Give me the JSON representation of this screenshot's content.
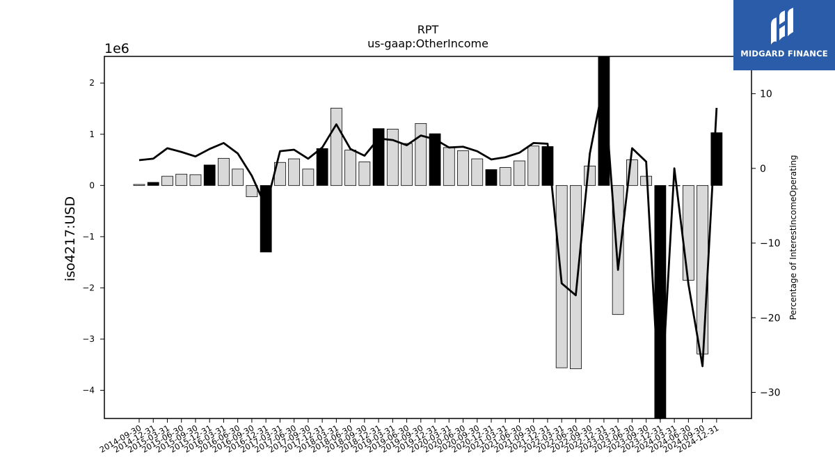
{
  "colors": {
    "bar_normal": "#d9d9d9",
    "bar_q4": "#000000",
    "line": "#000000",
    "logo_bg": "#2a5caa"
  },
  "logo": {
    "text": "MIDGARD FINANCE"
  },
  "chart_data": {
    "type": "bar",
    "title": "RPT",
    "subtitle": "us-gaap:OtherIncome",
    "ylabel": "iso4217:USD",
    "y_offset_text": "1e6",
    "y2label": "Percentage of InterestIncomeOperating",
    "ylim": [
      -4.55,
      2.52
    ],
    "y2lim": [
      -33.5,
      15.0
    ],
    "yticks": [
      -4,
      -3,
      -2,
      -1,
      0,
      1,
      2
    ],
    "y2ticks": [
      -30,
      -20,
      -10,
      0,
      10
    ],
    "categories": [
      "2014-09-30",
      "2014-12-31",
      "2015-03-31",
      "2015-06-30",
      "2015-09-30",
      "2015-12-31",
      "2016-03-31",
      "2016-06-30",
      "2016-09-30",
      "2016-12-31",
      "2017-03-31",
      "2017-06-30",
      "2017-09-30",
      "2017-12-31",
      "2018-03-31",
      "2018-06-30",
      "2018-09-30",
      "2018-12-31",
      "2019-03-31",
      "2019-06-30",
      "2019-09-30",
      "2019-12-31",
      "2020-03-31",
      "2020-06-30",
      "2020-09-30",
      "2020-12-31",
      "2021-03-31",
      "2021-06-30",
      "2021-09-30",
      "2021-12-31",
      "2022-03-31",
      "2022-06-30",
      "2022-09-30",
      "2022-12-31",
      "2023-03-31",
      "2023-06-30",
      "2023-09-30",
      "2023-12-31",
      "2024-03-31",
      "2024-06-30",
      "2024-09-30",
      "2024-12-31"
    ],
    "series": [
      {
        "type": "bar",
        "axis": "left",
        "values": [
          0.02,
          0.06,
          0.18,
          0.22,
          0.21,
          0.4,
          0.53,
          0.32,
          -0.22,
          -1.3,
          0.45,
          0.52,
          0.32,
          0.72,
          1.51,
          0.69,
          0.46,
          1.11,
          1.1,
          0.82,
          1.21,
          1.01,
          0.74,
          0.68,
          0.52,
          0.31,
          0.35,
          0.48,
          0.77,
          0.76,
          -3.56,
          -3.58,
          0.38,
          2.52,
          -2.52,
          0.5,
          0.18,
          -4.55,
          0.0,
          -1.85,
          -3.29,
          1.03
        ],
        "q4_highlight": [
          false,
          true,
          false,
          false,
          false,
          true,
          false,
          false,
          false,
          true,
          false,
          false,
          false,
          true,
          false,
          false,
          false,
          true,
          false,
          false,
          false,
          true,
          false,
          false,
          false,
          true,
          false,
          false,
          false,
          true,
          false,
          false,
          false,
          true,
          false,
          false,
          false,
          true,
          false,
          false,
          false,
          true
        ]
      },
      {
        "type": "line",
        "axis": "right",
        "values": [
          1.1,
          1.3,
          2.7,
          2.2,
          1.6,
          2.6,
          3.4,
          2.0,
          -1.0,
          -5.2,
          2.3,
          2.5,
          1.3,
          2.8,
          5.9,
          2.6,
          1.7,
          4.0,
          3.8,
          3.1,
          4.4,
          3.9,
          2.8,
          2.9,
          2.3,
          1.2,
          1.5,
          2.1,
          3.4,
          3.3,
          -15.4,
          -17.0,
          2.0,
          11.6,
          -13.6,
          2.7,
          0.9,
          -33.5,
          0.0,
          -15.5,
          -26.5,
          8.1
        ]
      }
    ],
    "grid": false,
    "legend": "none"
  }
}
